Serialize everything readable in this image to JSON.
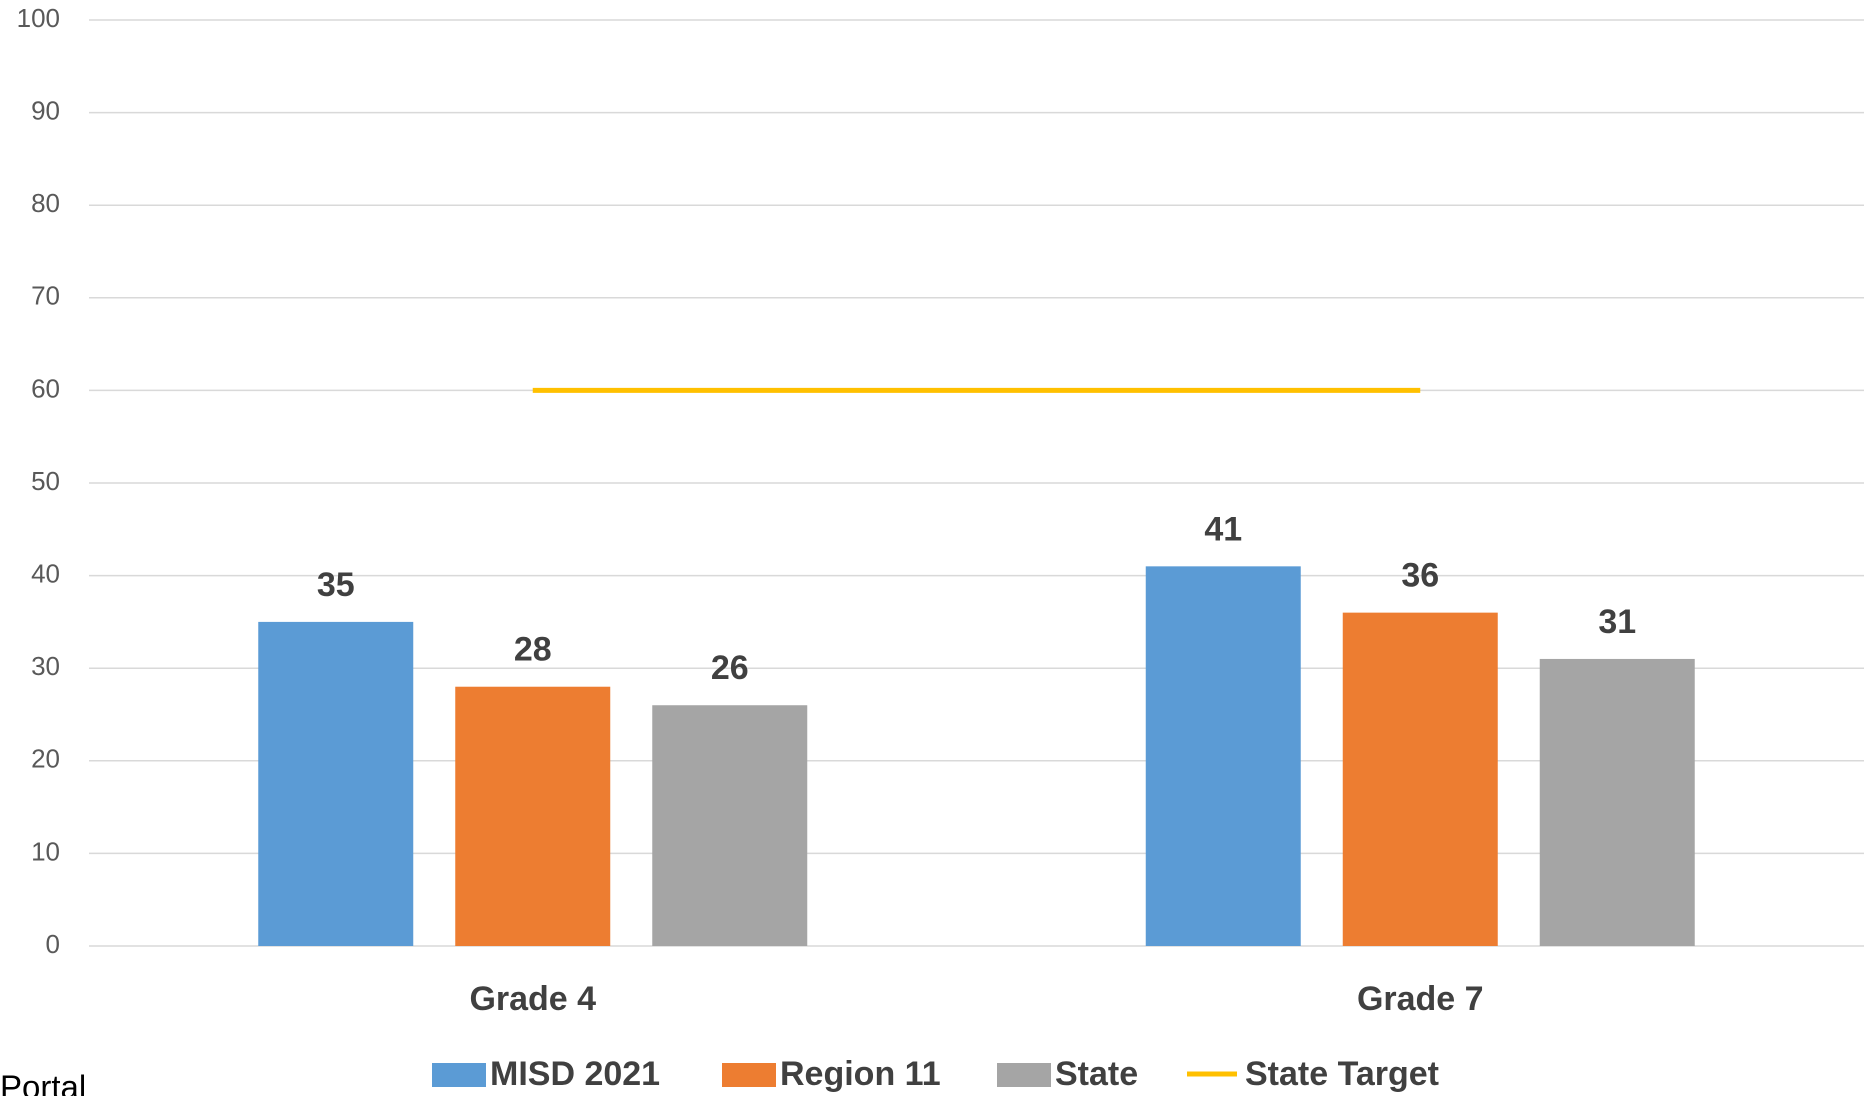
{
  "chart_data": {
    "type": "bar",
    "categories": [
      "Grade 4",
      "Grade 7"
    ],
    "series": [
      {
        "name": "MISD 2021",
        "color": "#5b9bd5",
        "values": [
          35,
          41
        ]
      },
      {
        "name": "Region 11",
        "color": "#ed7d31",
        "values": [
          28,
          36
        ]
      },
      {
        "name": "State",
        "color": "#a5a5a5",
        "values": [
          26,
          31
        ]
      },
      {
        "name": "State Target",
        "type": "line",
        "color": "#ffc000",
        "values": [
          60,
          60
        ]
      }
    ],
    "ylim": [
      0,
      100
    ],
    "yticks": [
      0,
      10,
      20,
      30,
      40,
      50,
      60,
      70,
      80,
      90,
      100
    ],
    "grid": true,
    "legend": "bottom"
  },
  "footer_text": "Portal"
}
